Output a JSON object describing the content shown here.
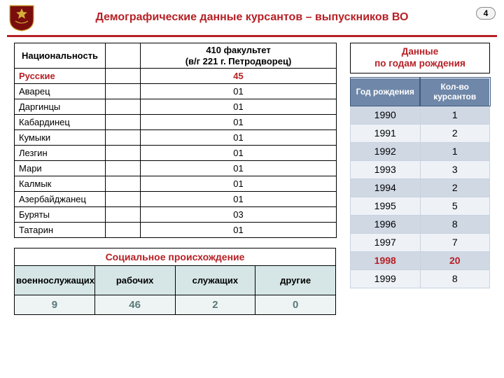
{
  "header": {
    "title": "Демографические данные курсантов – выпускников ВО",
    "page_number": "4",
    "accent_color": "#b62025"
  },
  "nationality_table": {
    "columns": {
      "c1": "Национальность",
      "c3": "410 факультет\n(в/г 221 г. Петродворец)"
    },
    "rows": [
      {
        "name": "Русские",
        "value": "45",
        "highlight": true
      },
      {
        "name": "Аварец",
        "value": "01"
      },
      {
        "name": "Даргинцы",
        "value": "01"
      },
      {
        "name": "Кабардинец",
        "value": "01"
      },
      {
        "name": "Кумыки",
        "value": "01"
      },
      {
        "name": "Лезгин",
        "value": "01"
      },
      {
        "name": "Мари",
        "value": "01"
      },
      {
        "name": "Калмык",
        "value": "01"
      },
      {
        "name": "Азербайджанец",
        "value": "01"
      },
      {
        "name": "Буряты",
        "value": "03"
      },
      {
        "name": "Татарин",
        "value": "01"
      }
    ]
  },
  "social_table": {
    "title": "Социальное происхождение",
    "columns": [
      "военнослужащих",
      "рабочих",
      "служащих",
      "другие"
    ],
    "values": [
      "9",
      "46",
      "2",
      "0"
    ]
  },
  "years_table": {
    "title": "Данные\nпо годам рождения",
    "columns": [
      "Год рождения",
      "Кол-во курсантов"
    ],
    "rows": [
      {
        "year": "1990",
        "count": "1"
      },
      {
        "year": "1991",
        "count": "2"
      },
      {
        "year": "1992",
        "count": "1"
      },
      {
        "year": "1993",
        "count": "3"
      },
      {
        "year": "1994",
        "count": "2"
      },
      {
        "year": "1995",
        "count": "5"
      },
      {
        "year": "1996",
        "count": "8"
      },
      {
        "year": "1997",
        "count": "7"
      },
      {
        "year": "1998",
        "count": "20",
        "highlight": true
      },
      {
        "year": "1999",
        "count": "8"
      }
    ],
    "header_bg": "#6f87a8",
    "odd_bg": "#d0d8e4",
    "even_bg": "#eef2f7"
  }
}
